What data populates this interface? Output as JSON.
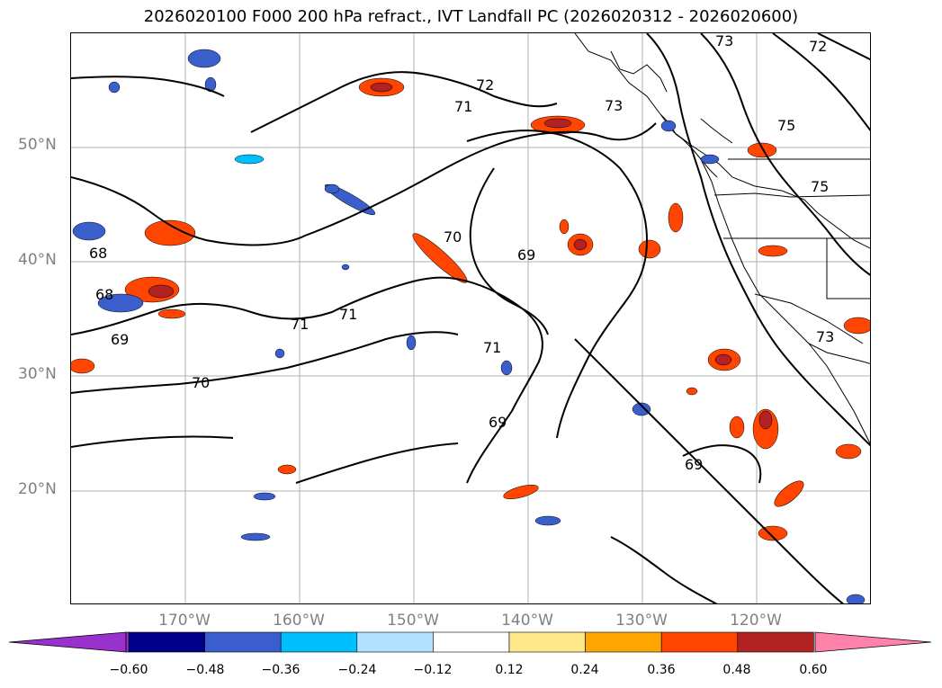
{
  "title": "2026020100 F000 200 hPa refract., IVT Landfall PC (2026020312 - 2026020600)",
  "lat_labels": [
    "50°N",
    "40°N",
    "30°N",
    "20°N"
  ],
  "lon_labels": [
    "170°W",
    "160°W",
    "150°W",
    "140°W",
    "130°W",
    "120°W"
  ],
  "contour_labels": [
    "73",
    "72",
    "72",
    "71",
    "71",
    "71",
    "71",
    "70",
    "70",
    "69",
    "69",
    "69",
    "69",
    "68",
    "68",
    "73",
    "73",
    "75",
    "75"
  ],
  "colorbar": {
    "ticks": [
      "−0.60",
      "−0.48",
      "−0.36",
      "−0.24",
      "−0.12",
      "0.12",
      "0.24",
      "0.36",
      "0.48",
      "0.60"
    ],
    "colors": [
      "#9932cc",
      "#00008b",
      "#3a5fcd",
      "#00bfff",
      "#b0e2ff",
      "#ffffff",
      "#fde98c",
      "#ffa500",
      "#ff4500",
      "#b22222",
      "#ff82ab"
    ]
  }
}
